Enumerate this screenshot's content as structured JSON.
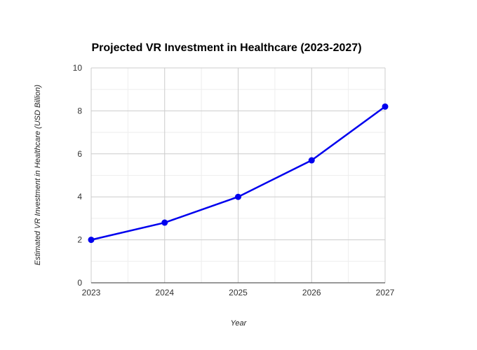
{
  "chart_data": {
    "type": "line",
    "title": "Projected VR Investment in Healthcare (2023-2027)",
    "xlabel": "Year",
    "ylabel": "Estimated VR Investment in Healthcare (USD Billion)",
    "categories": [
      "2023",
      "2024",
      "2025",
      "2026",
      "2027"
    ],
    "series": [
      {
        "values": [
          2.0,
          2.8,
          4.0,
          5.7,
          8.2
        ],
        "color": "#0000ee"
      }
    ],
    "ylim": [
      0,
      10
    ],
    "yticks": [
      "0",
      "2",
      "4",
      "6",
      "8",
      "10"
    ],
    "grid": true,
    "legend": "none"
  }
}
